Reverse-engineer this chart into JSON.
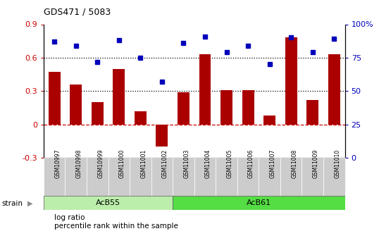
{
  "title": "GDS471 / 5083",
  "samples": [
    "GSM10997",
    "GSM10998",
    "GSM10999",
    "GSM11000",
    "GSM11001",
    "GSM11002",
    "GSM11003",
    "GSM11004",
    "GSM11005",
    "GSM11006",
    "GSM11007",
    "GSM11008",
    "GSM11009",
    "GSM11010"
  ],
  "log_ratio": [
    0.47,
    0.36,
    0.2,
    0.5,
    0.12,
    -0.2,
    0.29,
    0.63,
    0.31,
    0.31,
    0.08,
    0.78,
    0.22,
    0.63
  ],
  "pct_rank": [
    87,
    84,
    72,
    88,
    75,
    57,
    86,
    91,
    79,
    84,
    70,
    90,
    79,
    89
  ],
  "groups": [
    {
      "label": "AcB55",
      "start": 0,
      "end": 6,
      "color": "#bbeeaa"
    },
    {
      "label": "AcB61",
      "start": 6,
      "end": 14,
      "color": "#55dd44"
    }
  ],
  "bar_color": "#aa0000",
  "dot_color": "#0000bb",
  "ylim_left": [
    -0.3,
    0.9
  ],
  "ylim_right": [
    0,
    100
  ],
  "yticks_left": [
    -0.3,
    0.0,
    0.3,
    0.6,
    0.9
  ],
  "yticks_right": [
    0,
    25,
    50,
    75,
    100
  ],
  "hlines_dotted": [
    0.3,
    0.6
  ],
  "hline_dashed_val": 0.0,
  "legend_items": [
    {
      "label": "log ratio",
      "color": "#aa0000"
    },
    {
      "label": "percentile rank within the sample",
      "color": "#0000bb"
    }
  ],
  "strain_label": "strain"
}
